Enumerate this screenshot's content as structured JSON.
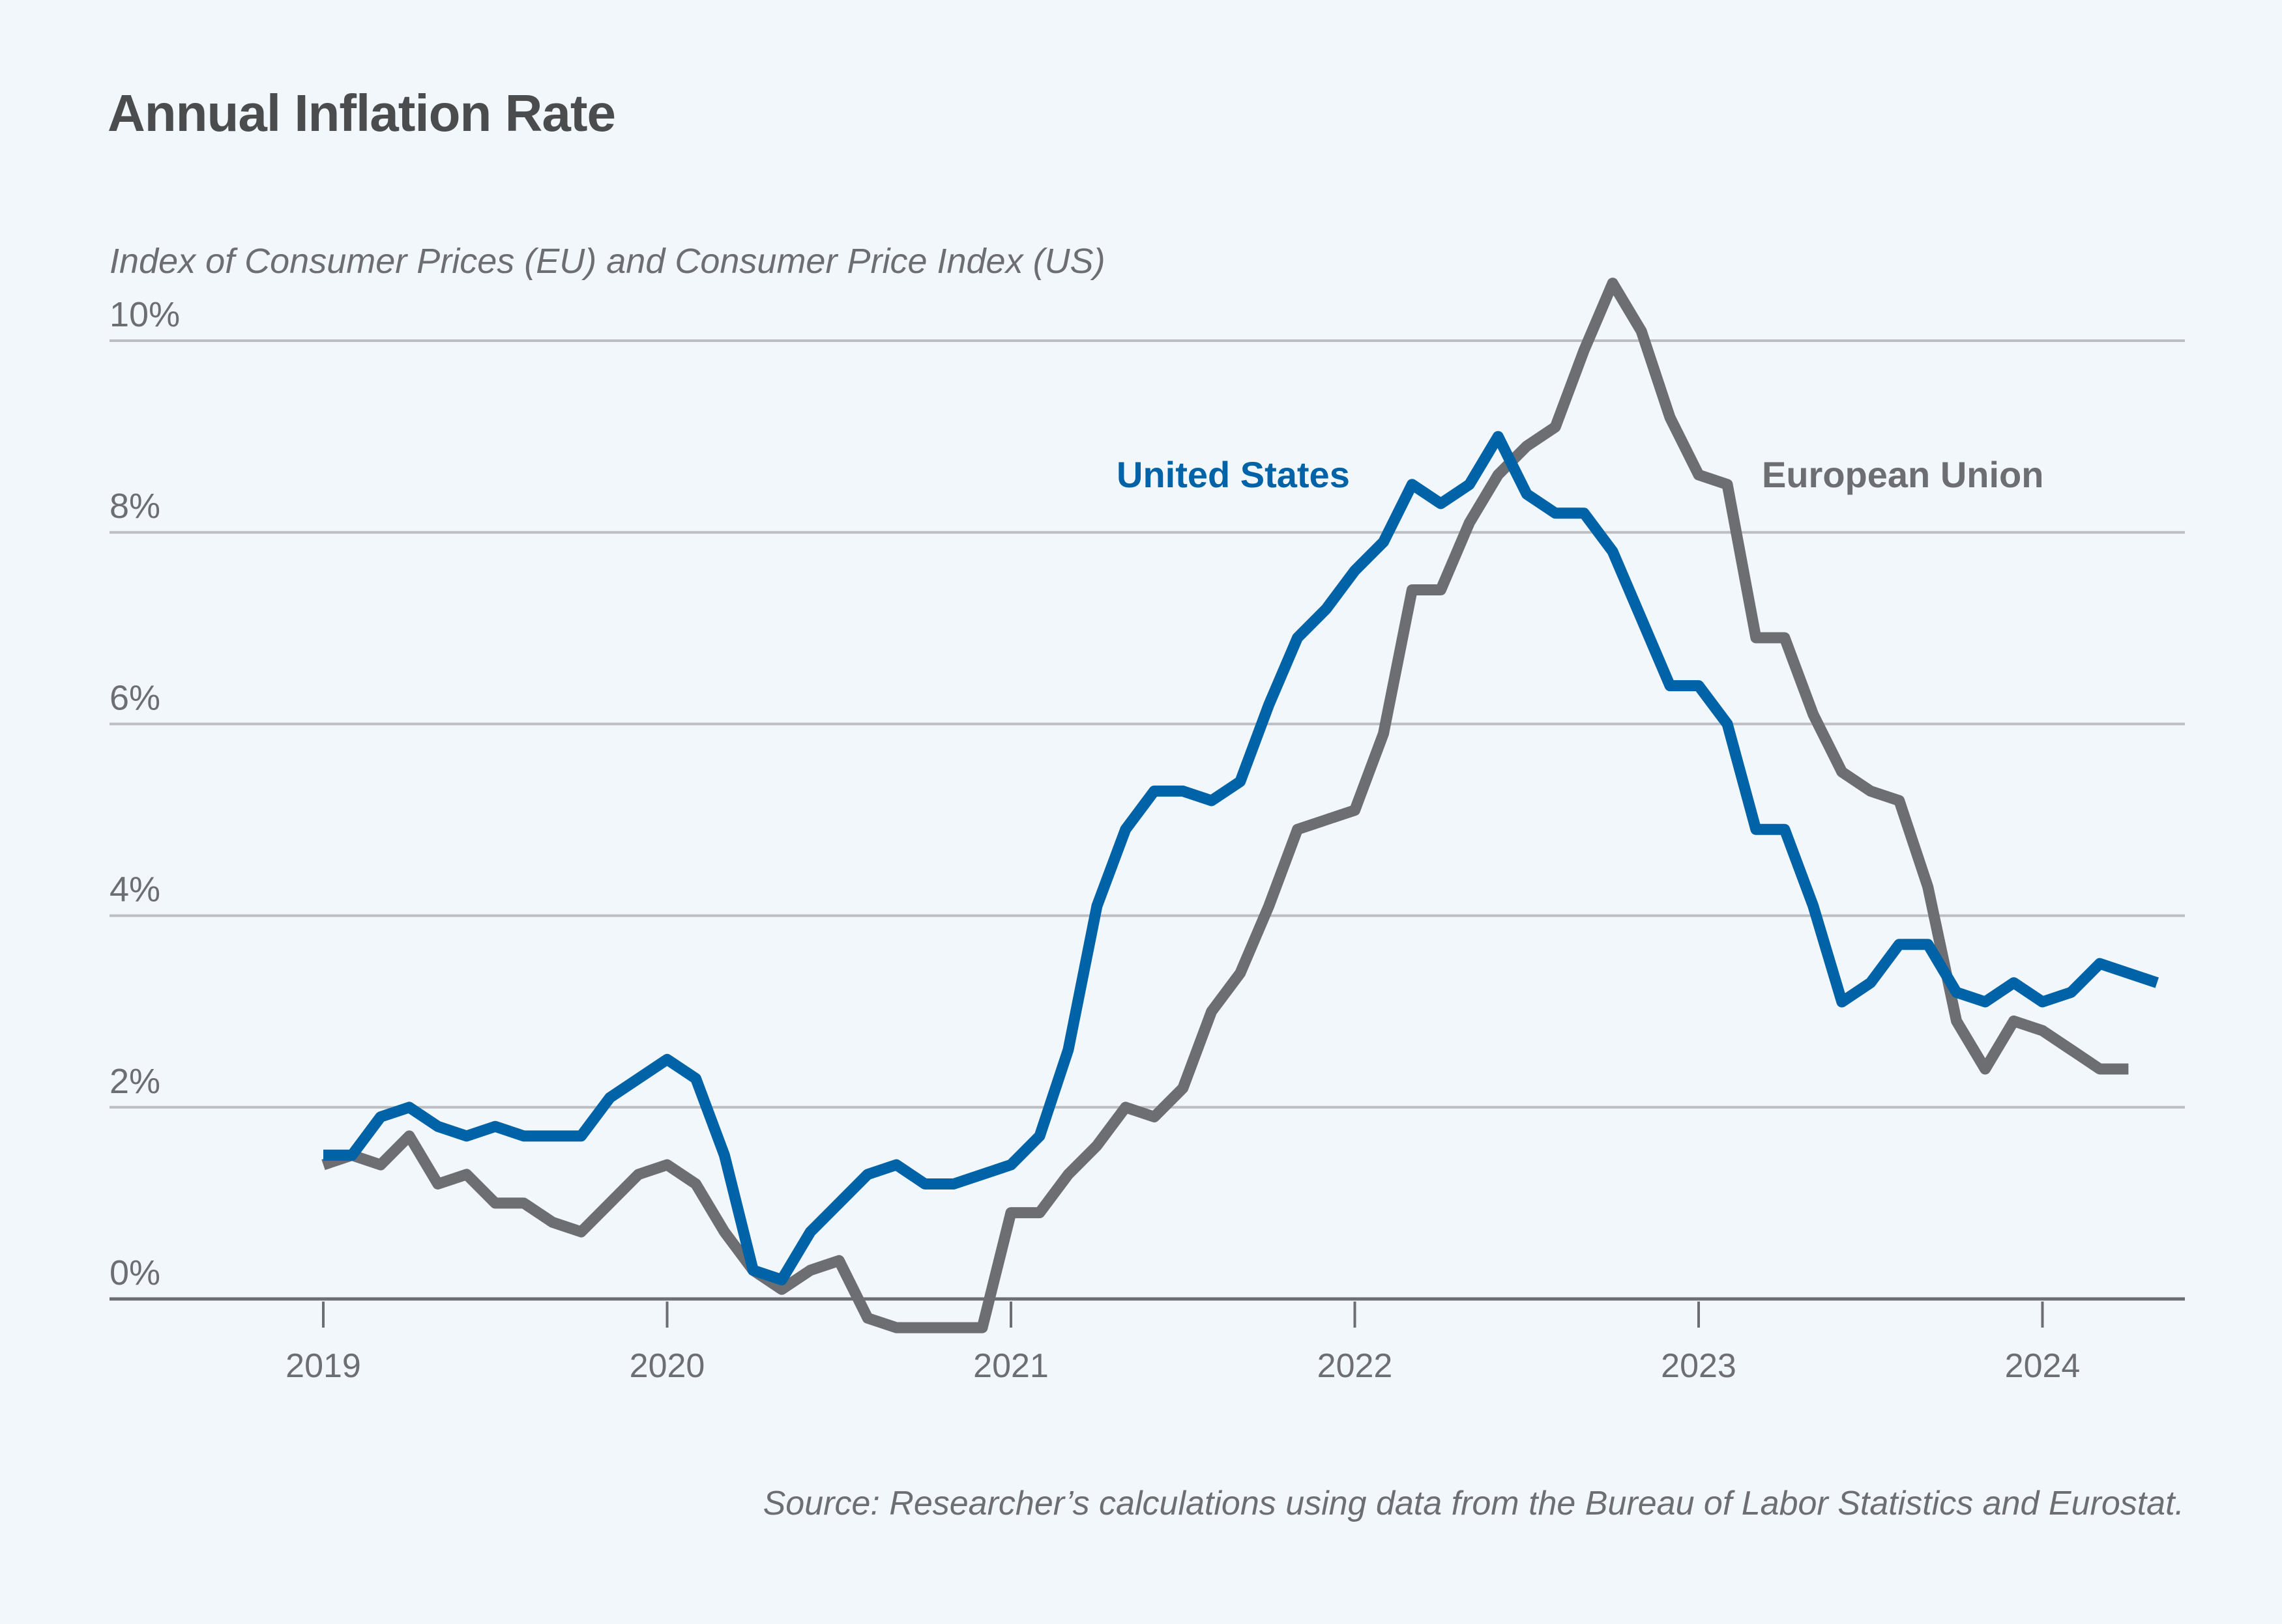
{
  "header": {
    "title": "Annual Inflation Rate",
    "subtitle": "Index of Consumer Prices (EU) and Consumer Price Index (US)"
  },
  "footer": {
    "source": "Source: Researcher’s calculations using data from the Bureau of Labor Statistics and Eurostat."
  },
  "chart_data": {
    "type": "line",
    "title": "Annual Inflation Rate",
    "ylabel": "Index of Consumer Prices (EU) and Consumer Price Index (US)",
    "xlabel": "",
    "ylim": [
      0,
      10
    ],
    "yticks": [
      0,
      2,
      4,
      6,
      8,
      10
    ],
    "ytick_labels": [
      "0%",
      "2%",
      "4%",
      "6%",
      "8%",
      "10%"
    ],
    "xlim": [
      2018.4,
      2024.4
    ],
    "xticks": [
      2019,
      2020,
      2021,
      2022,
      2023,
      2024
    ],
    "xtick_labels": [
      "2019",
      "2020",
      "2021",
      "2022",
      "2023",
      "2024"
    ],
    "grid": true,
    "legend": "inline-labels",
    "x_start": "2019-01",
    "x_step": "month",
    "series": [
      {
        "name": "United States",
        "color": "#0062a7",
        "label_position": "center-left of peak",
        "values": [
          1.5,
          1.5,
          1.9,
          2.0,
          1.8,
          1.7,
          1.8,
          1.7,
          1.7,
          1.7,
          2.1,
          2.3,
          2.5,
          2.3,
          1.5,
          0.3,
          0.2,
          0.7,
          1.0,
          1.3,
          1.4,
          1.2,
          1.2,
          1.3,
          1.4,
          1.7,
          2.6,
          4.1,
          4.9,
          5.3,
          5.3,
          5.2,
          5.4,
          6.2,
          6.9,
          7.2,
          7.6,
          7.9,
          8.5,
          8.3,
          8.5,
          9.0,
          8.4,
          8.2,
          8.2,
          7.8,
          7.1,
          6.4,
          6.4,
          6.0,
          4.9,
          4.9,
          4.1,
          3.1,
          3.3,
          3.7,
          3.7,
          3.2,
          3.1,
          3.3,
          3.1,
          3.2,
          3.5,
          3.4,
          3.3
        ]
      },
      {
        "name": "European Union",
        "color": "#6d6e72",
        "label_position": "right of peak",
        "values": [
          1.4,
          1.5,
          1.4,
          1.7,
          1.2,
          1.3,
          1.0,
          1.0,
          0.8,
          0.7,
          1.0,
          1.3,
          1.4,
          1.2,
          0.7,
          0.3,
          0.1,
          0.3,
          0.4,
          -0.2,
          -0.3,
          -0.3,
          -0.3,
          -0.3,
          0.9,
          0.9,
          1.3,
          1.6,
          2.0,
          1.9,
          2.2,
          3.0,
          3.4,
          4.1,
          4.9,
          5.0,
          5.1,
          5.9,
          7.4,
          7.4,
          8.1,
          8.6,
          8.9,
          9.1,
          9.9,
          10.6,
          10.1,
          9.2,
          8.6,
          8.5,
          6.9,
          6.9,
          6.1,
          5.5,
          5.3,
          5.2,
          4.3,
          2.9,
          2.4,
          2.9,
          2.8,
          2.6,
          2.4,
          2.4
        ]
      }
    ]
  }
}
